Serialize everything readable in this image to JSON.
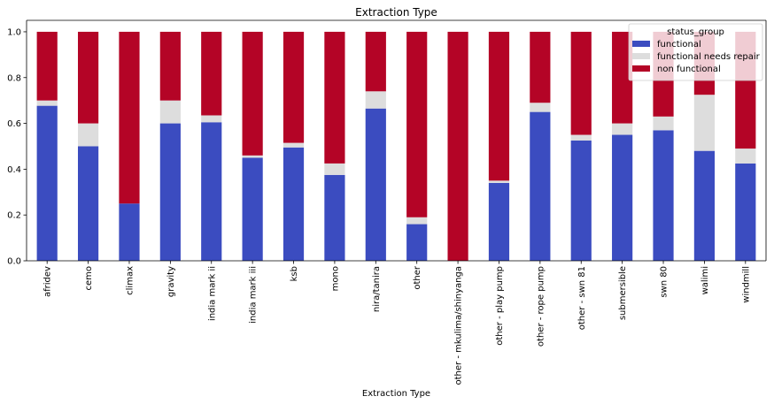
{
  "chart_data": {
    "type": "bar",
    "stacked": true,
    "title": "Extraction Type",
    "xlabel": "Extraction Type",
    "ylabel": "",
    "ylim": [
      0,
      1.05
    ],
    "yticks": [
      "0.0",
      "0.2",
      "0.4",
      "0.6",
      "0.8",
      "1.0"
    ],
    "ytick_values": [
      0,
      0.2,
      0.4,
      0.6,
      0.8,
      1.0
    ],
    "grid": false,
    "legend": {
      "title": "status_group",
      "placement": "top-right"
    },
    "categories": [
      "afridev",
      "cemo",
      "climax",
      "gravity",
      "india mark ii",
      "india mark iii",
      "ksb",
      "mono",
      "nira/tanira",
      "other",
      "other - mkulima/shinyanga",
      "other - play pump",
      "other - rope pump",
      "other - swn 81",
      "submersible",
      "swn 80",
      "walimi",
      "windmill"
    ],
    "series": [
      {
        "name": "functional",
        "color": "#3b4cc0",
        "values": [
          0.677,
          0.5,
          0.25,
          0.6,
          0.605,
          0.45,
          0.495,
          0.375,
          0.665,
          0.16,
          0.0,
          0.34,
          0.65,
          0.525,
          0.55,
          0.57,
          0.48,
          0.425
        ]
      },
      {
        "name": "functional needs repair",
        "color": "#dddddd",
        "values": [
          0.023,
          0.1,
          0.0,
          0.1,
          0.03,
          0.01,
          0.02,
          0.05,
          0.075,
          0.03,
          0.0,
          0.01,
          0.04,
          0.025,
          0.05,
          0.06,
          0.245,
          0.065
        ]
      },
      {
        "name": "non functional",
        "color": "#b40426",
        "values": [
          0.3,
          0.4,
          0.75,
          0.3,
          0.365,
          0.54,
          0.485,
          0.575,
          0.26,
          0.81,
          1.0,
          0.65,
          0.31,
          0.45,
          0.4,
          0.37,
          0.275,
          0.51
        ]
      }
    ]
  }
}
